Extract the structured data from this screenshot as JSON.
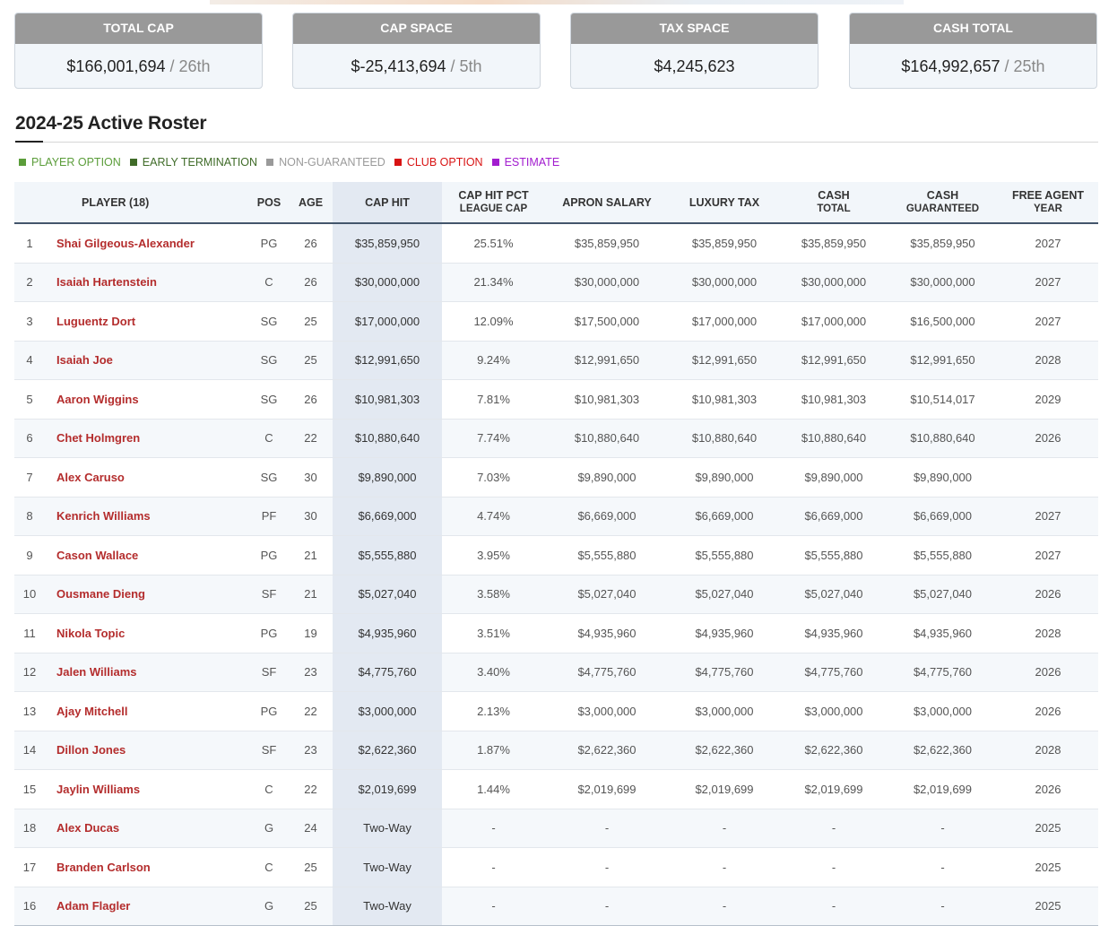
{
  "summary": [
    {
      "label": "TOTAL CAP",
      "value": "$166,001,694",
      "rank": "/ 26th"
    },
    {
      "label": "CAP SPACE",
      "value": "$-25,413,694",
      "rank": "/ 5th"
    },
    {
      "label": "TAX SPACE",
      "value": "$4,245,623"
    },
    {
      "label": "CASH TOTAL",
      "value": "$164,992,657",
      "rank": "/ 25th"
    }
  ],
  "section_title": "2024-25 Active Roster",
  "legend": [
    {
      "label": "PLAYER OPTION",
      "color": "#5b9d3a"
    },
    {
      "label": "EARLY TERMINATION",
      "color": "#3f6b28"
    },
    {
      "label": "NON-GUARANTEED",
      "color": "#9a9a9a"
    },
    {
      "label": "CLUB OPTION",
      "color": "#d81414"
    },
    {
      "label": "ESTIMATE",
      "color": "#a21ccf"
    }
  ],
  "table": {
    "header": [
      [],
      [
        "PLAYER (18)"
      ],
      [
        "POS"
      ],
      [
        "AGE"
      ],
      [
        "CAP HIT"
      ],
      [
        "CAP HIT PCT",
        "LEAGUE CAP"
      ],
      [
        "APRON SALARY"
      ],
      [
        "LUXURY TAX"
      ],
      [
        "CASH",
        "TOTAL"
      ],
      [
        "CASH",
        "GUARANTEED"
      ],
      [
        "FREE AGENT",
        "YEAR"
      ]
    ],
    "rows": [
      [
        "1",
        "Shai Gilgeous-Alexander",
        "PG",
        "26",
        "$35,859,950",
        "25.51%",
        "$35,859,950",
        "$35,859,950",
        "$35,859,950",
        "$35,859,950",
        "2027"
      ],
      [
        "2",
        "Isaiah Hartenstein",
        "C",
        "26",
        "$30,000,000",
        "21.34%",
        "$30,000,000",
        "$30,000,000",
        "$30,000,000",
        "$30,000,000",
        "2027"
      ],
      [
        "3",
        "Luguentz Dort",
        "SG",
        "25",
        "$17,000,000",
        "12.09%",
        "$17,500,000",
        "$17,000,000",
        "$17,000,000",
        "$16,500,000",
        "2027"
      ],
      [
        "4",
        "Isaiah Joe",
        "SG",
        "25",
        "$12,991,650",
        "9.24%",
        "$12,991,650",
        "$12,991,650",
        "$12,991,650",
        "$12,991,650",
        "2028"
      ],
      [
        "5",
        "Aaron Wiggins",
        "SG",
        "26",
        "$10,981,303",
        "7.81%",
        "$10,981,303",
        "$10,981,303",
        "$10,981,303",
        "$10,514,017",
        "2029"
      ],
      [
        "6",
        "Chet Holmgren",
        "C",
        "22",
        "$10,880,640",
        "7.74%",
        "$10,880,640",
        "$10,880,640",
        "$10,880,640",
        "$10,880,640",
        "2026"
      ],
      [
        "7",
        "Alex Caruso",
        "SG",
        "30",
        "$9,890,000",
        "7.03%",
        "$9,890,000",
        "$9,890,000",
        "$9,890,000",
        "$9,890,000",
        null
      ],
      [
        "8",
        "Kenrich Williams",
        "PF",
        "30",
        "$6,669,000",
        "4.74%",
        "$6,669,000",
        "$6,669,000",
        "$6,669,000",
        "$6,669,000",
        "2027"
      ],
      [
        "9",
        "Cason Wallace",
        "PG",
        "21",
        "$5,555,880",
        "3.95%",
        "$5,555,880",
        "$5,555,880",
        "$5,555,880",
        "$5,555,880",
        "2027"
      ],
      [
        "10",
        "Ousmane Dieng",
        "SF",
        "21",
        "$5,027,040",
        "3.58%",
        "$5,027,040",
        "$5,027,040",
        "$5,027,040",
        "$5,027,040",
        "2026"
      ],
      [
        "11",
        "Nikola Topic",
        "PG",
        "19",
        "$4,935,960",
        "3.51%",
        "$4,935,960",
        "$4,935,960",
        "$4,935,960",
        "$4,935,960",
        "2028"
      ],
      [
        "12",
        "Jalen Williams",
        "SF",
        "23",
        "$4,775,760",
        "3.40%",
        "$4,775,760",
        "$4,775,760",
        "$4,775,760",
        "$4,775,760",
        "2026"
      ],
      [
        "13",
        "Ajay Mitchell",
        "PG",
        "22",
        "$3,000,000",
        "2.13%",
        "$3,000,000",
        "$3,000,000",
        "$3,000,000",
        "$3,000,000",
        "2026"
      ],
      [
        "14",
        "Dillon Jones",
        "SF",
        "23",
        "$2,622,360",
        "1.87%",
        "$2,622,360",
        "$2,622,360",
        "$2,622,360",
        "$2,622,360",
        "2028"
      ],
      [
        "15",
        "Jaylin Williams",
        "C",
        "22",
        "$2,019,699",
        "1.44%",
        "$2,019,699",
        "$2,019,699",
        "$2,019,699",
        "$2,019,699",
        "2026"
      ],
      [
        "18",
        "Alex Ducas",
        "G",
        "24",
        "Two-Way",
        "-",
        "-",
        "-",
        "-",
        "-",
        "2025"
      ],
      [
        "17",
        "Branden Carlson",
        "C",
        "25",
        "Two-Way",
        "-",
        "-",
        "-",
        "-",
        "-",
        "2025"
      ],
      [
        "16",
        "Adam Flagler",
        "G",
        "25",
        "Two-Way",
        "-",
        "-",
        "-",
        "-",
        "-",
        "2025"
      ]
    ]
  }
}
